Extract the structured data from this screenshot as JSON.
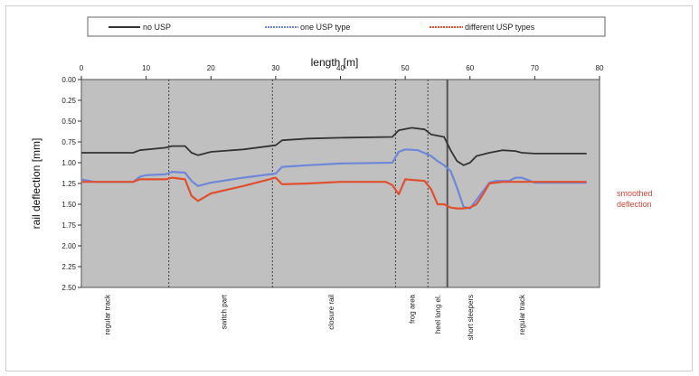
{
  "chart_data": {
    "type": "line",
    "title": "",
    "xlabel": "length [m]",
    "ylabel": "rail deflection  [mm]",
    "xlim": [
      0,
      80
    ],
    "ylim": [
      0,
      2.5
    ],
    "y_inverted": true,
    "x_ticks": [
      "0",
      "10",
      "20",
      "30",
      "40",
      "50",
      "60",
      "70",
      "80"
    ],
    "y_ticks": [
      "0.00",
      "0.25",
      "0.50",
      "0.75",
      "1.00",
      "1.25",
      "1.50",
      "1.75",
      "2.00",
      "2.25",
      "2.50"
    ],
    "legend_position": "top",
    "grid": false,
    "series": [
      {
        "name": "no USP",
        "color": "#333333",
        "x": [
          0,
          8,
          9,
          13,
          14,
          16,
          17,
          18,
          20,
          25,
          30,
          31,
          35,
          40,
          48,
          49,
          51,
          53,
          54,
          56,
          57,
          58,
          59,
          60,
          61,
          63,
          65,
          67,
          68,
          70,
          75,
          78
        ],
        "y": [
          0.88,
          0.88,
          0.85,
          0.82,
          0.8,
          0.8,
          0.88,
          0.91,
          0.87,
          0.84,
          0.79,
          0.73,
          0.71,
          0.7,
          0.69,
          0.61,
          0.58,
          0.6,
          0.66,
          0.69,
          0.85,
          0.98,
          1.03,
          1.0,
          0.92,
          0.88,
          0.85,
          0.86,
          0.88,
          0.89,
          0.89,
          0.89
        ]
      },
      {
        "name": "one USP type",
        "color": "#6f87d8",
        "x": [
          0,
          2,
          8,
          9,
          10,
          13,
          14,
          16,
          17,
          18,
          20,
          25,
          30,
          31,
          35,
          40,
          48,
          49,
          50,
          52,
          54,
          55,
          56,
          57,
          58,
          59,
          60,
          63,
          64,
          66,
          67,
          68,
          69,
          70,
          75,
          78
        ],
        "y": [
          1.2,
          1.23,
          1.23,
          1.17,
          1.15,
          1.14,
          1.11,
          1.12,
          1.22,
          1.28,
          1.24,
          1.18,
          1.13,
          1.05,
          1.03,
          1.01,
          1.0,
          0.87,
          0.84,
          0.85,
          0.92,
          0.98,
          1.03,
          1.1,
          1.3,
          1.53,
          1.55,
          1.24,
          1.22,
          1.22,
          1.18,
          1.18,
          1.21,
          1.24,
          1.24,
          1.24
        ]
      },
      {
        "name": "different USP types",
        "color": "#e0502f",
        "x": [
          0,
          8,
          9,
          13,
          14,
          16,
          17,
          18,
          20,
          25,
          29,
          30,
          31,
          35,
          40,
          47,
          48,
          49,
          50,
          53,
          54,
          55,
          56,
          57,
          58,
          59,
          60,
          61,
          62,
          63,
          65,
          70,
          75,
          78
        ],
        "y": [
          1.23,
          1.23,
          1.2,
          1.2,
          1.18,
          1.2,
          1.4,
          1.46,
          1.37,
          1.28,
          1.2,
          1.18,
          1.26,
          1.25,
          1.23,
          1.23,
          1.27,
          1.38,
          1.2,
          1.22,
          1.32,
          1.5,
          1.5,
          1.54,
          1.55,
          1.55,
          1.54,
          1.5,
          1.38,
          1.25,
          1.23,
          1.23,
          1.23,
          1.23
        ]
      }
    ],
    "dotted_vlines": [
      13.5,
      29.5,
      48.5,
      53.5
    ],
    "solid_vlines": [
      56.5
    ],
    "section_labels": [
      {
        "x": 4,
        "text": "regular track"
      },
      {
        "x": 22,
        "text": "switch part"
      },
      {
        "x": 38.5,
        "text": "closure rail"
      },
      {
        "x": 51,
        "text": "frog area"
      },
      {
        "x": 55,
        "text": "heel long el."
      },
      {
        "x": 60,
        "text": "short sleepers"
      },
      {
        "x": 68,
        "text": "regular track"
      }
    ],
    "side_annotation": [
      "smoothed",
      "deflection"
    ]
  }
}
